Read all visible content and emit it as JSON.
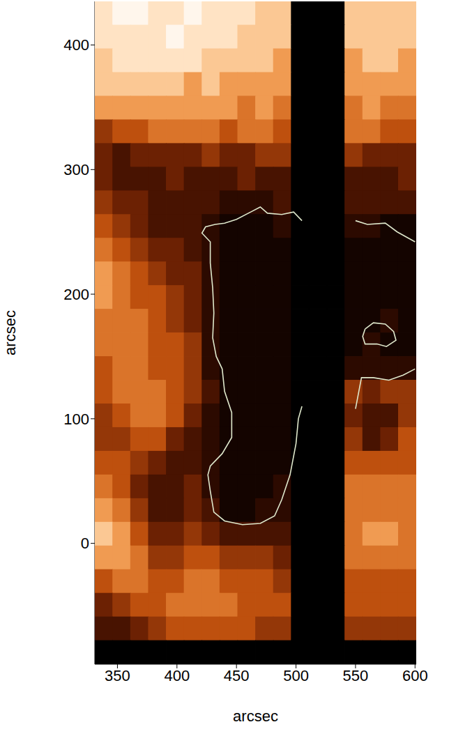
{
  "chart_data": {
    "type": "heatmap",
    "x_label": "arcsec",
    "y_label": "arcsec",
    "xlim": [
      331,
      601
    ],
    "ylim": [
      -97,
      435
    ],
    "xticks": [
      350,
      400,
      450,
      500,
      550,
      600
    ],
    "yticks": [
      0,
      100,
      200,
      300,
      400
    ],
    "grid": false,
    "color": "#dfe8cc",
    "x_edges": [
      331,
      346,
      361,
      376,
      391,
      406,
      421,
      436,
      451,
      466,
      481,
      496,
      511,
      526,
      541,
      556,
      571,
      586,
      601
    ],
    "y_edges": [
      435,
      416,
      397,
      378,
      359,
      340,
      321,
      302,
      283,
      264,
      245,
      226,
      207,
      188,
      169,
      150,
      131,
      112,
      93,
      74,
      55,
      36,
      17,
      -2,
      -21,
      -40,
      -59,
      -78,
      -97
    ],
    "cells": [
      [
        9,
        10,
        10,
        9,
        9,
        10,
        9,
        9,
        9,
        8,
        8,
        null,
        null,
        null,
        8,
        8,
        8,
        8
      ],
      [
        9,
        9,
        9,
        9,
        10,
        9,
        9,
        9,
        8,
        8,
        8,
        null,
        null,
        null,
        8,
        8,
        8,
        8
      ],
      [
        8,
        9,
        9,
        9,
        9,
        9,
        8,
        8,
        8,
        8,
        7,
        null,
        null,
        null,
        7,
        8,
        8,
        7
      ],
      [
        8,
        8,
        8,
        8,
        8,
        7,
        8,
        7,
        7,
        7,
        7,
        null,
        null,
        null,
        7,
        7,
        7,
        7
      ],
      [
        7,
        7,
        7,
        7,
        7,
        7,
        7,
        7,
        6,
        7,
        6,
        null,
        null,
        null,
        6,
        7,
        6,
        6
      ],
      [
        4,
        5,
        5,
        6,
        6,
        6,
        6,
        5,
        6,
        6,
        5,
        null,
        null,
        null,
        6,
        6,
        5,
        5
      ],
      [
        3,
        2,
        3,
        3,
        3,
        3,
        4,
        3,
        3,
        4,
        4,
        null,
        null,
        null,
        4,
        3,
        3,
        3
      ],
      [
        3,
        2,
        2,
        2,
        3,
        2,
        2,
        2,
        3,
        2,
        2,
        null,
        null,
        null,
        2,
        2,
        2,
        3
      ],
      [
        4,
        3,
        3,
        2,
        2,
        2,
        2,
        1,
        1,
        1,
        2,
        null,
        null,
        null,
        2,
        2,
        2,
        2
      ],
      [
        5,
        4,
        3,
        2,
        2,
        2,
        1,
        0,
        0,
        0,
        1,
        null,
        null,
        null,
        1,
        1,
        0,
        0
      ],
      [
        6,
        5,
        4,
        3,
        3,
        2,
        1,
        0,
        0,
        0,
        0,
        null,
        null,
        null,
        0,
        0,
        0,
        0
      ],
      [
        7,
        6,
        5,
        4,
        3,
        3,
        1,
        0,
        0,
        0,
        0,
        null,
        null,
        null,
        0,
        0,
        0,
        0
      ],
      [
        7,
        6,
        5,
        5,
        4,
        3,
        1,
        0,
        0,
        0,
        0,
        null,
        null,
        null,
        0,
        0,
        0,
        0
      ],
      [
        6,
        6,
        6,
        5,
        4,
        3,
        1,
        0,
        0,
        0,
        0,
        null,
        null,
        null,
        0,
        0,
        1,
        0
      ],
      [
        6,
        6,
        6,
        5,
        5,
        4,
        1,
        0,
        0,
        0,
        0,
        null,
        null,
        null,
        0,
        1,
        0,
        0
      ],
      [
        5,
        6,
        6,
        5,
        5,
        4,
        1,
        0,
        0,
        0,
        0,
        null,
        null,
        null,
        1,
        1,
        1,
        1
      ],
      [
        5,
        6,
        6,
        6,
        5,
        4,
        2,
        0,
        0,
        0,
        0,
        null,
        null,
        null,
        4,
        3,
        4,
        4
      ],
      [
        4,
        5,
        6,
        6,
        5,
        3,
        1,
        0,
        0,
        0,
        0,
        null,
        null,
        null,
        3,
        2,
        2,
        4
      ],
      [
        4,
        4,
        5,
        5,
        3,
        2,
        1,
        0,
        0,
        0,
        0,
        null,
        null,
        null,
        4,
        2,
        3,
        5
      ],
      [
        5,
        5,
        4,
        3,
        2,
        2,
        1,
        0,
        0,
        0,
        0,
        null,
        null,
        null,
        5,
        5,
        5,
        5
      ],
      [
        6,
        5,
        3,
        2,
        2,
        3,
        1,
        0,
        0,
        0,
        1,
        null,
        null,
        null,
        6,
        6,
        6,
        6
      ],
      [
        7,
        6,
        4,
        2,
        2,
        3,
        2,
        0,
        0,
        1,
        1,
        null,
        null,
        null,
        6,
        6,
        6,
        6
      ],
      [
        8,
        7,
        5,
        3,
        3,
        4,
        3,
        2,
        2,
        2,
        2,
        null,
        null,
        null,
        6,
        7,
        7,
        6
      ],
      [
        7,
        7,
        6,
        4,
        4,
        5,
        5,
        4,
        4,
        4,
        3,
        null,
        null,
        null,
        6,
        6,
        6,
        6
      ],
      [
        5,
        6,
        6,
        5,
        5,
        6,
        6,
        5,
        5,
        5,
        4,
        null,
        null,
        null,
        5,
        5,
        5,
        5
      ],
      [
        3,
        4,
        5,
        5,
        6,
        6,
        6,
        6,
        5,
        5,
        5,
        null,
        null,
        null,
        5,
        5,
        5,
        5
      ],
      [
        2,
        2,
        3,
        4,
        5,
        5,
        5,
        5,
        5,
        4,
        4,
        null,
        null,
        null,
        4,
        4,
        4,
        4
      ],
      [
        null,
        null,
        null,
        null,
        null,
        null,
        null,
        null,
        null,
        null,
        null,
        null,
        null,
        null,
        null,
        null,
        null,
        null
      ]
    ],
    "contours": [
      [
        [
          505,
          259
        ],
        [
          498,
          266
        ],
        [
          488,
          264
        ],
        [
          476,
          265
        ],
        [
          470,
          270
        ],
        [
          462,
          266
        ],
        [
          450,
          260
        ],
        [
          440,
          257
        ],
        [
          432,
          256
        ],
        [
          424,
          254
        ],
        [
          421,
          249
        ],
        [
          428,
          242
        ],
        [
          428,
          225
        ],
        [
          430,
          205
        ],
        [
          431,
          185
        ],
        [
          430,
          165
        ],
        [
          433,
          150
        ],
        [
          438,
          140
        ],
        [
          440,
          122
        ],
        [
          446,
          105
        ],
        [
          446,
          85
        ],
        [
          438,
          72
        ],
        [
          428,
          62
        ],
        [
          426,
          55
        ],
        [
          428,
          42
        ],
        [
          431,
          25
        ],
        [
          440,
          18
        ],
        [
          455,
          15
        ],
        [
          470,
          16
        ],
        [
          482,
          22
        ],
        [
          488,
          35
        ],
        [
          495,
          55
        ],
        [
          500,
          80
        ],
        [
          502,
          100
        ],
        [
          505,
          110
        ]
      ],
      [
        [
          550,
          259
        ],
        [
          560,
          256
        ],
        [
          575,
          257
        ],
        [
          585,
          250
        ],
        [
          600,
          242
        ]
      ],
      [
        [
          550,
          108
        ],
        [
          552,
          118
        ],
        [
          555,
          133
        ],
        [
          565,
          133
        ],
        [
          578,
          131
        ],
        [
          590,
          135
        ],
        [
          600,
          140
        ]
      ],
      [
        [
          558,
          172
        ],
        [
          565,
          177
        ],
        [
          575,
          176
        ],
        [
          582,
          170
        ],
        [
          584,
          163
        ],
        [
          576,
          158
        ],
        [
          568,
          160
        ],
        [
          558,
          160
        ],
        [
          556,
          166
        ],
        [
          558,
          172
        ]
      ]
    ]
  }
}
